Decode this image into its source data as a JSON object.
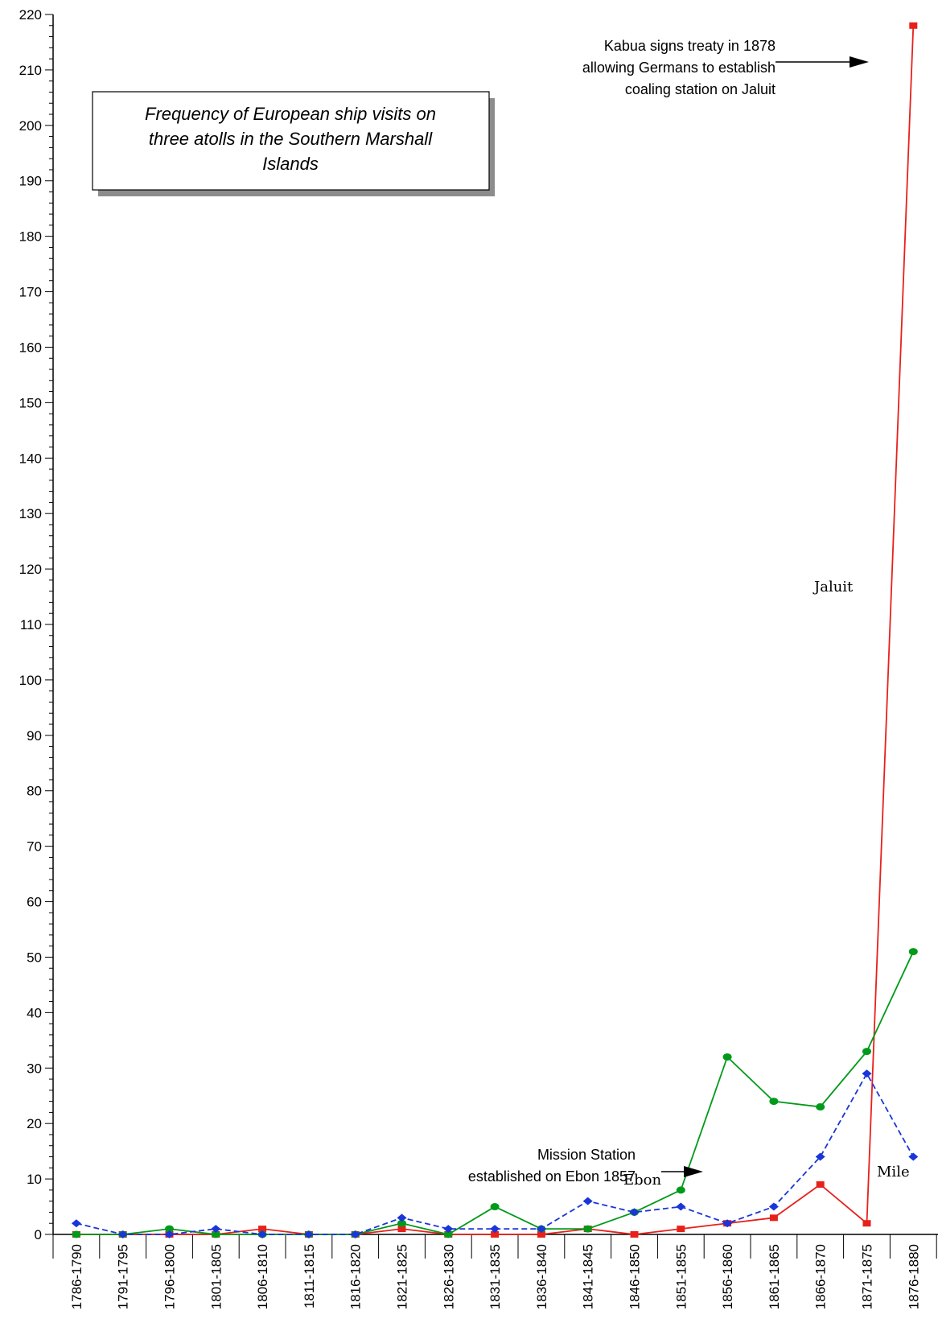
{
  "chart_data": {
    "type": "line",
    "title": "Frequency of European ship visits on three atolls in the Southern Marshall Islands",
    "title_lines": [
      "Frequency of European ship visits on",
      "three atolls in the Southern Marshall",
      "Islands"
    ],
    "xlabel": "",
    "ylabel": "",
    "ylim": [
      0,
      220
    ],
    "y_ticks": [
      0,
      10,
      20,
      30,
      40,
      50,
      60,
      70,
      80,
      90,
      100,
      110,
      120,
      130,
      140,
      150,
      160,
      170,
      180,
      190,
      200,
      210,
      220
    ],
    "grid": false,
    "categories": [
      "1786-1790",
      "1791-1795",
      "1796-1800",
      "1801-1805",
      "1806-1810",
      "1811-1815",
      "1816-1820",
      "1821-1825",
      "1826-1830",
      "1831-1835",
      "1836-1840",
      "1841-1845",
      "1846-1850",
      "1851-1855",
      "1856-1860",
      "1861-1865",
      "1866-1870",
      "1871-1875",
      "1876-1880"
    ],
    "series": [
      {
        "name": "Jaluit",
        "color": "#e8201a",
        "marker": "square",
        "dash": "solid",
        "values": [
          0,
          0,
          0,
          0,
          1,
          0,
          0,
          1,
          0,
          0,
          0,
          1,
          0,
          1,
          2,
          3,
          9,
          2,
          218
        ]
      },
      {
        "name": "Ebon",
        "color": "#009a1a",
        "marker": "circle",
        "dash": "solid",
        "values": [
          0,
          0,
          1,
          0,
          0,
          0,
          0,
          2,
          0,
          5,
          1,
          1,
          4,
          8,
          32,
          24,
          23,
          33,
          51
        ]
      },
      {
        "name": "Mile",
        "color": "#1a35d8",
        "marker": "diamond",
        "dash": "dashed",
        "values": [
          2,
          0,
          0,
          1,
          0,
          0,
          0,
          3,
          1,
          1,
          1,
          6,
          4,
          5,
          2,
          5,
          14,
          29,
          14
        ]
      }
    ],
    "annotations": [
      {
        "lines": [
          "Kabua signs treaty  in 1878",
          "allowing Germans  to establish",
          "coaling station on Jaluit"
        ]
      },
      {
        "lines": [
          "Mission Station",
          "established on Ebon 1857"
        ]
      }
    ]
  }
}
